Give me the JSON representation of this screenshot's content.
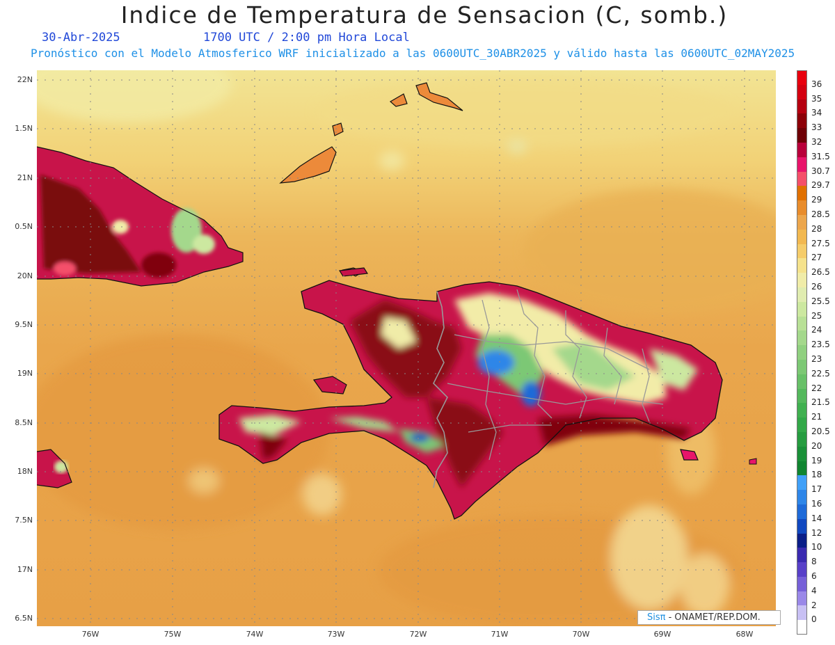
{
  "header": {
    "title": "Indice de Temperatura de Sensacion (C, somb.)",
    "date": "30-Abr-2025",
    "time": "1700 UTC / 2:00 pm Hora Local",
    "subtitle": "Pronóstico con el Modelo Atmosferico WRF inicializado a las 0600UTC_30ABR2025 y válido hasta las  0600UTC_02MAY2025"
  },
  "axes": {
    "lat_labels": [
      "22N",
      "1.5N",
      "21N",
      "0.5N",
      "20N",
      "9.5N",
      "19N",
      "8.5N",
      "18N",
      "7.5N",
      "17N",
      "6.5N"
    ],
    "lon_labels": [
      "76W",
      "75W",
      "74W",
      "73W",
      "72W",
      "71W",
      "70W",
      "69W",
      "68W"
    ]
  },
  "legend": {
    "levels": [
      "36",
      "35",
      "34",
      "33",
      "32",
      "31.5",
      "30.7",
      "29.7",
      "29",
      "28.5",
      "28",
      "27.5",
      "27",
      "26.5",
      "26",
      "25.5",
      "25",
      "24",
      "23.5",
      "23",
      "22.5",
      "22",
      "21.5",
      "21",
      "20.5",
      "20",
      "19",
      "18",
      "17",
      "16",
      "14",
      "12",
      "10",
      "8",
      "6",
      "4",
      "2",
      "0"
    ],
    "colors": [
      "#e8000e",
      "#d40010",
      "#b50010",
      "#8c0008",
      "#6e0006",
      "#b8003a",
      "#e8146a",
      "#f4506a",
      "#e07000",
      "#e88c2c",
      "#eca64c",
      "#f2b850",
      "#f5cc6a",
      "#f5e28c",
      "#f0eca8",
      "#e0ecb0",
      "#cce8a0",
      "#b8e096",
      "#a4d88c",
      "#90d080",
      "#7cc874",
      "#68c068",
      "#54b85c",
      "#40b050",
      "#32a848",
      "#269c40",
      "#1a9038",
      "#108430",
      "#40a0f8",
      "#2e86e8",
      "#1e6ad8",
      "#1048c0",
      "#0a1e88",
      "#3a2ab0",
      "#5840c8",
      "#7660d8",
      "#9a88e8",
      "#c8c0f4",
      "#ffffff"
    ]
  },
  "credit": {
    "brand": "Sisπ",
    "text": " - ONAMET/REP.DOM."
  }
}
